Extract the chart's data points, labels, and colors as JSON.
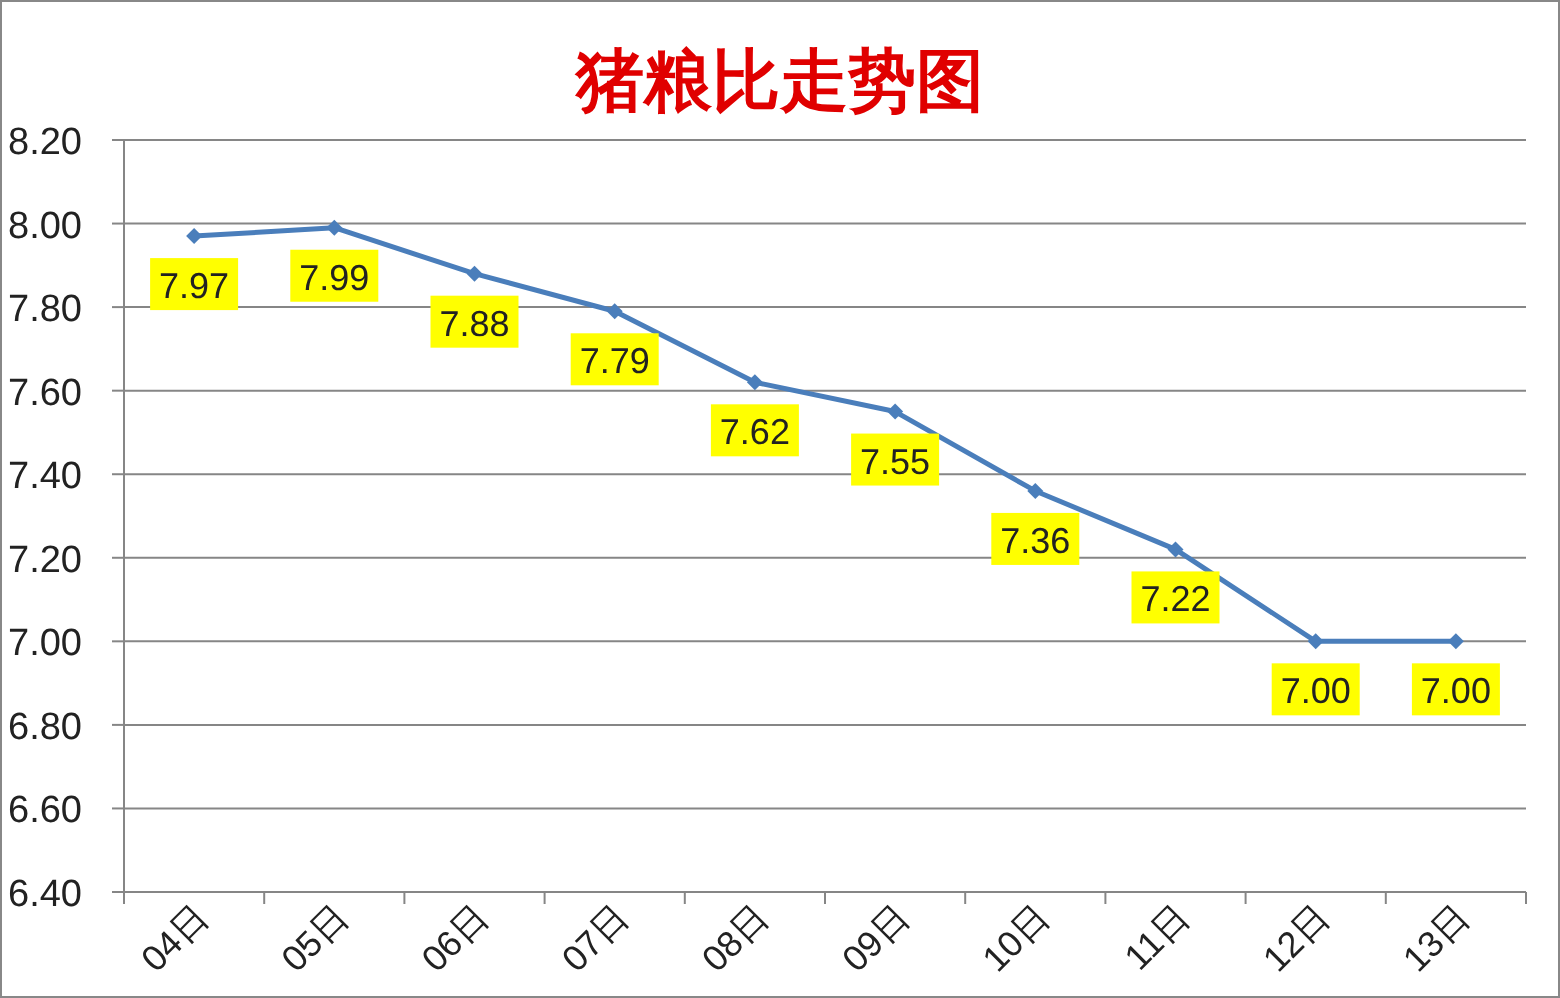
{
  "chart_data": {
    "type": "line",
    "title": "猪粮比走势图",
    "categories": [
      "04日",
      "05日",
      "06日",
      "07日",
      "08日",
      "09日",
      "10日",
      "11日",
      "12日",
      "13日"
    ],
    "series": [
      {
        "color": "#4a7ebb",
        "values": [
          7.97,
          7.99,
          7.88,
          7.79,
          7.62,
          7.55,
          7.36,
          7.22,
          7.0,
          7.0
        ],
        "value_labels": [
          "7.97",
          "7.99",
          "7.88",
          "7.79",
          "7.62",
          "7.55",
          "7.36",
          "7.22",
          "7.00",
          "7.00"
        ]
      }
    ],
    "ylim": [
      6.4,
      8.2
    ],
    "yticks": [
      "6.40",
      "6.60",
      "6.80",
      "7.00",
      "7.20",
      "7.40",
      "7.60",
      "7.80",
      "8.00",
      "8.20"
    ],
    "grid": "y",
    "marker": "diamond"
  }
}
